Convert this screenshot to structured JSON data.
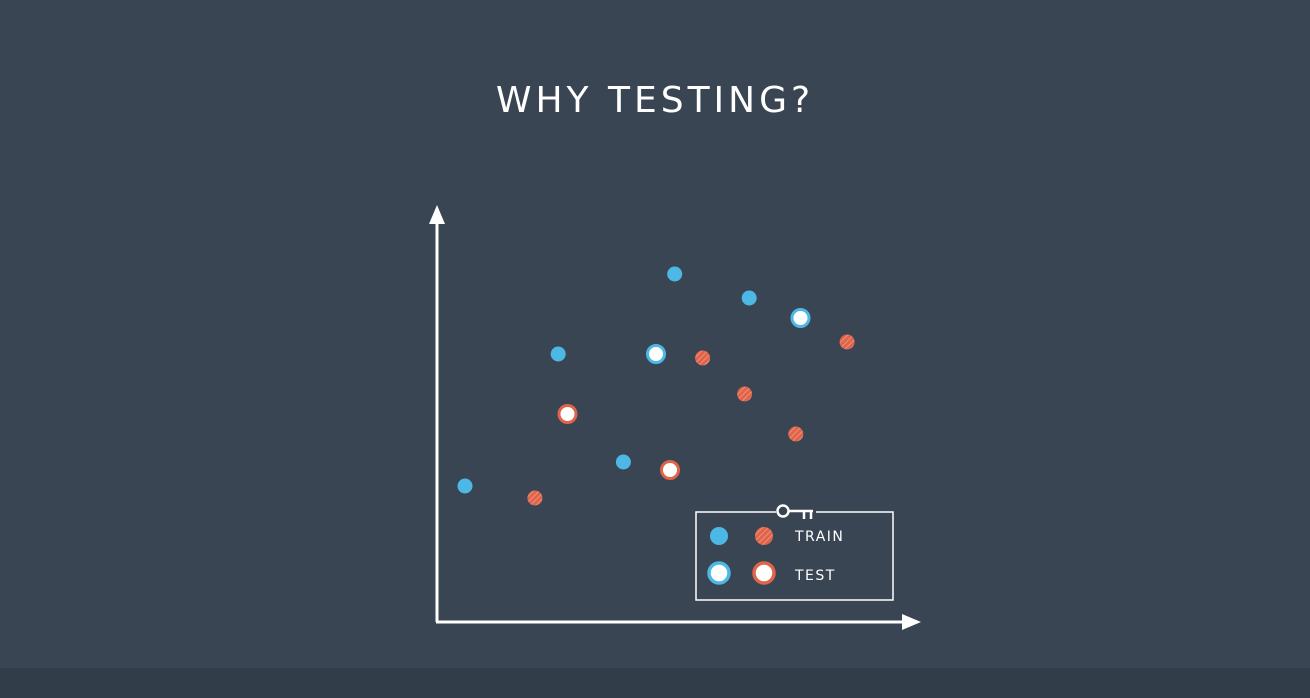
{
  "title": "WHY TESTING?",
  "colors": {
    "background": "#394553",
    "axis": "#ffffff",
    "blue": "#4db8e6",
    "red": "#e0644a"
  },
  "legend": {
    "icon": "key-icon",
    "train_label": "TRAIN",
    "test_label": "TEST"
  },
  "chart_data": {
    "type": "scatter",
    "title": "WHY TESTING?",
    "xlabel": "",
    "ylabel": "",
    "xlim": [
      0,
      100
    ],
    "ylim": [
      0,
      100
    ],
    "grid": false,
    "legend_position": "bottom-right",
    "series": [
      {
        "name": "TRAIN",
        "class": "blue",
        "x": [
          6,
          26,
          40,
          51,
          67
        ],
        "y": [
          34,
          67,
          40,
          87,
          81
        ]
      },
      {
        "name": "TRAIN",
        "class": "red",
        "x": [
          21,
          57,
          66,
          77,
          88
        ],
        "y": [
          31,
          66,
          57,
          47,
          70
        ]
      },
      {
        "name": "TEST",
        "class": "blue",
        "x": [
          47,
          78
        ],
        "y": [
          67,
          76
        ]
      },
      {
        "name": "TEST",
        "class": "red",
        "x": [
          28,
          50
        ],
        "y": [
          52,
          38
        ]
      }
    ]
  }
}
